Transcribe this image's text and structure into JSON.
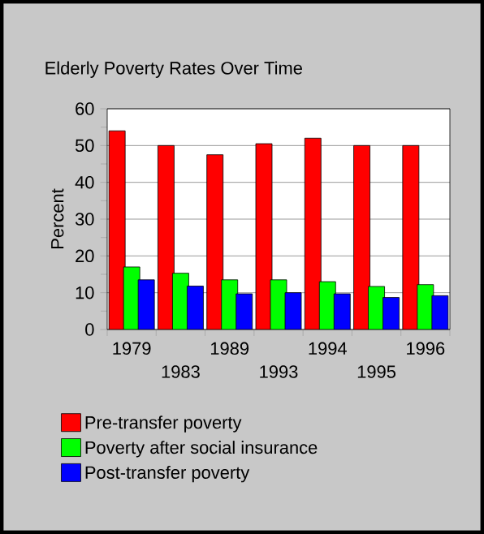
{
  "chart_data": {
    "type": "bar",
    "title": "Elderly Poverty Rates Over Time",
    "ylabel": "Percent",
    "categories": [
      "1979",
      "1983",
      "1989",
      "1993",
      "1994",
      "1995",
      "1996"
    ],
    "series": [
      {
        "name": "Pre-transfer poverty",
        "color": "#ff0000",
        "values": [
          54,
          50,
          47.5,
          50.5,
          52,
          50,
          50
        ]
      },
      {
        "name": "Poverty after social insurance",
        "color": "#00ff00",
        "values": [
          17,
          15.3,
          13.5,
          13.5,
          13,
          11.7,
          12.2
        ]
      },
      {
        "name": "Post-transfer poverty",
        "color": "#0000ff",
        "values": [
          13.5,
          11.8,
          9.7,
          10,
          9.7,
          8.7,
          9.2
        ]
      }
    ],
    "ylim": [
      0,
      60
    ],
    "yticks": [
      0,
      10,
      20,
      30,
      40,
      50,
      60
    ],
    "grid": "y",
    "legend": "bottom"
  }
}
